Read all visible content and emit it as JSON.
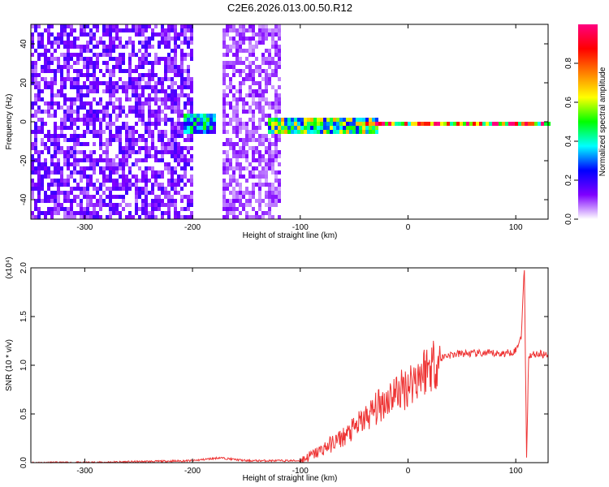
{
  "title": "C2E6.2026.013.00.50.R12",
  "chart_data": [
    {
      "type": "heatmap",
      "xlabel": "Height of straight line (km)",
      "ylabel": "Frequency (Hz)",
      "xlim": [
        -350,
        130
      ],
      "ylim": [
        -50,
        50
      ],
      "xticks": [
        -300,
        -200,
        -100,
        0,
        100
      ],
      "yticks": [
        -40,
        -20,
        0,
        20,
        40
      ],
      "colorbar": {
        "label": "Normalized spectral amplitude",
        "range": [
          0,
          1
        ],
        "ticks": [
          0.0,
          0.2,
          0.4,
          0.6,
          0.8
        ],
        "colormap": [
          "#ffffff",
          "#7f00ff",
          "#0000ff",
          "#00ffff",
          "#00ff00",
          "#ffff00",
          "#ff8000",
          "#ff0000",
          "#ff0080"
        ]
      },
      "features": [
        {
          "x_range": [
            -350,
            -200
          ],
          "y_range": [
            -50,
            50
          ],
          "level": 0.15
        },
        {
          "x_range": [
            -175,
            -120
          ],
          "y_range": [
            -50,
            50
          ],
          "level": 0.1
        },
        {
          "x_range": [
            -210,
            -180
          ],
          "y_range": [
            -5,
            5
          ],
          "level": 0.4
        },
        {
          "x_range": [
            -130,
            -30
          ],
          "y_range": [
            -5,
            3
          ],
          "level": 0.55
        },
        {
          "x_range": [
            -40,
            130
          ],
          "y_range": [
            -1.5,
            1.5
          ],
          "level": 0.9
        }
      ]
    },
    {
      "type": "line",
      "xlabel": "Height of straight line (km)",
      "ylabel": "SNR (10 * v/v)",
      "y_multiplier": "(x10⁴)",
      "xlim": [
        -350,
        130
      ],
      "ylim": [
        0,
        2.0
      ],
      "xticks": [
        -300,
        -200,
        -100,
        0,
        100
      ],
      "yticks": [
        0.0,
        0.5,
        1.0,
        1.5,
        2.0
      ],
      "color": "#ee3333",
      "series": [
        {
          "x": [
            -350,
            -300,
            -250,
            -200,
            -175,
            -150,
            -120,
            -100,
            -85,
            -70,
            -55,
            -45,
            -35,
            -25,
            -15,
            -5,
            5,
            15,
            25,
            35,
            50,
            70,
            90,
            100,
            105,
            108,
            110,
            112,
            120,
            130
          ],
          "y": [
            0.0,
            0.0,
            0.01,
            0.02,
            0.05,
            0.02,
            0.02,
            0.02,
            0.1,
            0.2,
            0.3,
            0.4,
            0.5,
            0.6,
            0.7,
            0.75,
            0.85,
            0.95,
            1.03,
            1.1,
            1.12,
            1.12,
            1.12,
            1.15,
            1.3,
            2.0,
            0.05,
            1.1,
            1.12,
            1.1
          ]
        }
      ]
    }
  ]
}
